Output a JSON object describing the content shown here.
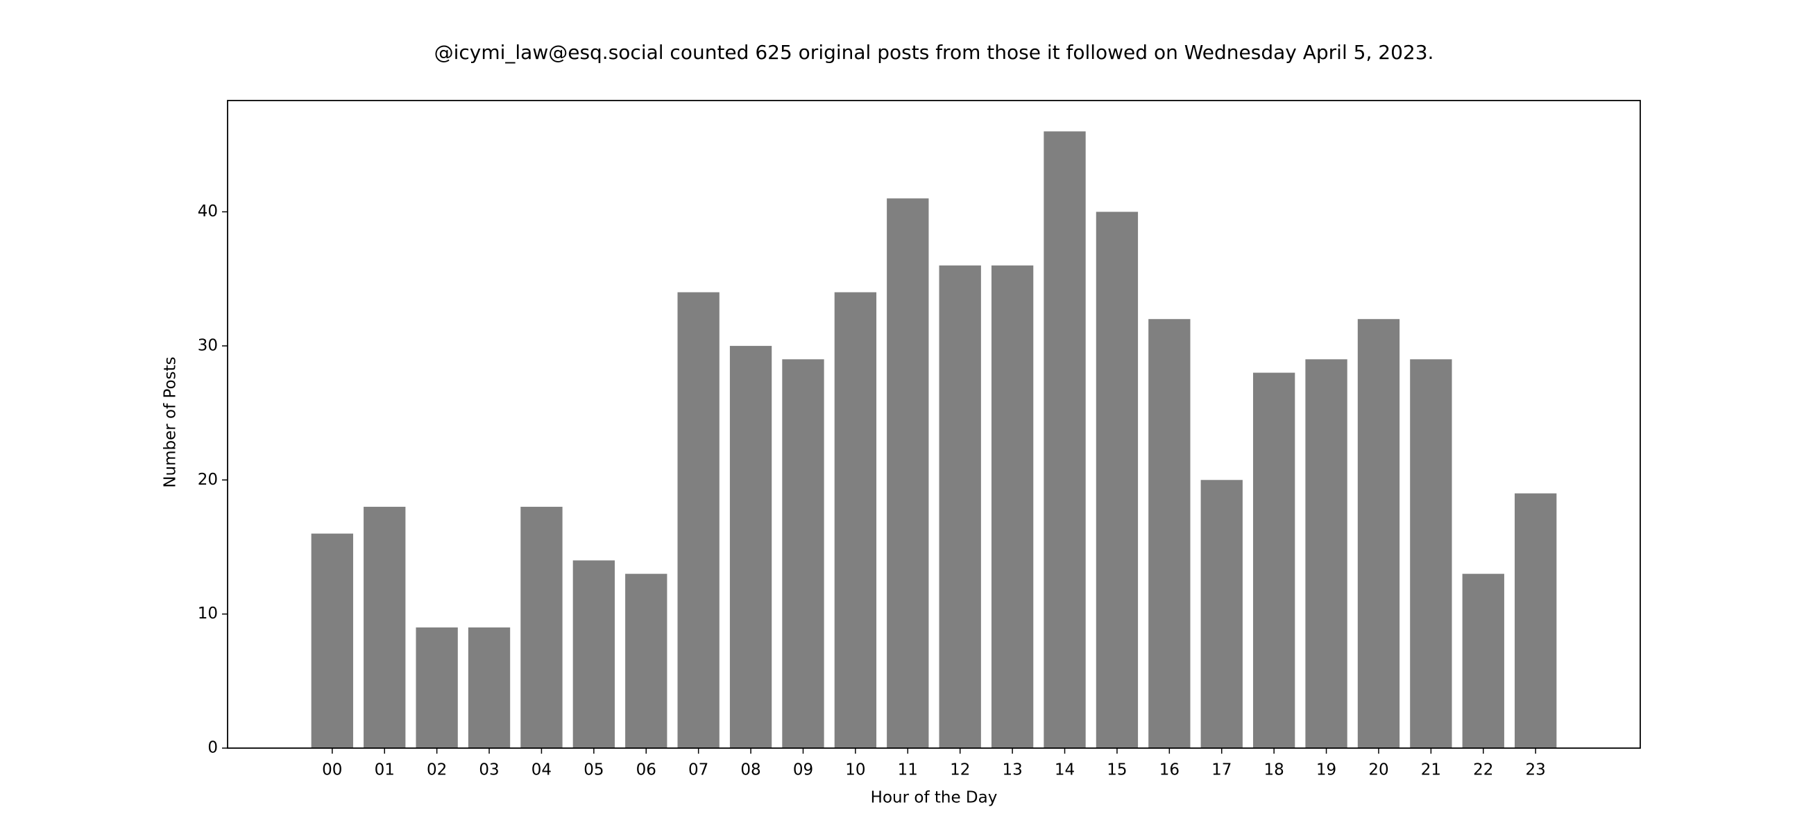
{
  "chart_data": {
    "type": "bar",
    "title": "@icymi_law@esq.social counted 625 original posts from those it followed on Wednesday April 5, 2023.",
    "x_label": "Hour of the Day",
    "y_label": "Number of Posts",
    "categories": [
      "00",
      "01",
      "02",
      "03",
      "04",
      "05",
      "06",
      "07",
      "08",
      "09",
      "10",
      "11",
      "12",
      "13",
      "14",
      "15",
      "16",
      "17",
      "18",
      "19",
      "20",
      "21",
      "22",
      "23"
    ],
    "values": [
      16,
      18,
      9,
      9,
      18,
      14,
      13,
      34,
      30,
      29,
      34,
      41,
      36,
      36,
      46,
      40,
      32,
      20,
      28,
      29,
      32,
      29,
      13,
      19
    ],
    "color": "#808080",
    "ylim": [
      0,
      48.3
    ],
    "yticks": [
      0,
      10,
      20,
      30,
      40
    ],
    "grid": false
  }
}
